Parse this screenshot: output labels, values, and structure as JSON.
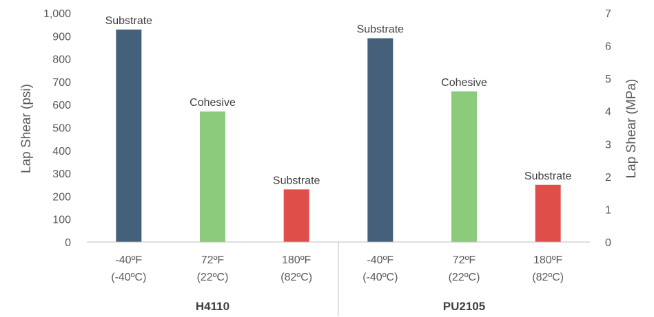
{
  "chart_data": {
    "type": "bar",
    "categories": [
      {
        "line1": "-40ºF",
        "line2": "(-40ºC)"
      },
      {
        "line1": "72ºF",
        "line2": "(22ºC)"
      },
      {
        "line1": "180ºF",
        "line2": "(82ºC)"
      },
      {
        "line1": "-40ºF",
        "line2": "(-40ºC)"
      },
      {
        "line1": "72ºF",
        "line2": "(22ºC)"
      },
      {
        "line1": "180ºF",
        "line2": "(82ºC)"
      }
    ],
    "groups": [
      {
        "label": "H4110",
        "span": [
          0,
          2
        ]
      },
      {
        "label": "PU2105",
        "span": [
          3,
          5
        ]
      }
    ],
    "values": [
      928,
      570,
      230,
      890,
      658,
      250
    ],
    "data_labels": [
      "Substrate",
      "Cohesive",
      "Substrate",
      "Substrate",
      "Cohesive",
      "Substrate"
    ],
    "bar_colors": [
      "#44607a",
      "#8ccb7b",
      "#e04e4a",
      "#44607a",
      "#8ccb7b",
      "#e04e4a"
    ],
    "ylabel": "Lap Shear (psi)",
    "y2label": "Lap Shear (MPa)",
    "ylim": [
      0,
      1000
    ],
    "yticks": [
      "0",
      "100",
      "200",
      "300",
      "400",
      "500",
      "600",
      "700",
      "800",
      "900",
      "1,000"
    ],
    "y2lim": [
      0,
      7
    ],
    "y2ticks": [
      "0",
      "1",
      "2",
      "3",
      "4",
      "5",
      "6",
      "7"
    ],
    "grid": false,
    "legend": "none",
    "axis_color": "#bfbfbf"
  }
}
